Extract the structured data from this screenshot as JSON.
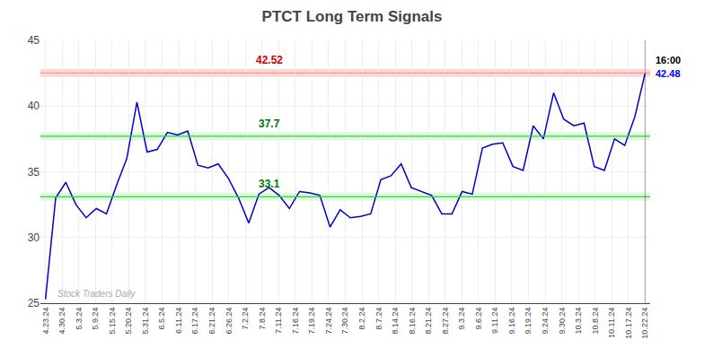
{
  "chart_data": {
    "type": "line",
    "title": "PTCT Long Term Signals",
    "color": "#0000cc",
    "values": [
      25.3,
      33.0,
      34.2,
      32.5,
      31.5,
      32.2,
      31.8,
      34.0,
      36.0,
      40.3,
      36.5,
      36.7,
      38.0,
      37.8,
      38.1,
      35.5,
      35.3,
      35.6,
      34.5,
      33.0,
      31.1,
      33.3,
      33.8,
      33.2,
      32.2,
      33.5,
      33.4,
      33.2,
      30.8,
      32.1,
      31.5,
      31.6,
      31.8,
      34.4,
      34.7,
      35.6,
      33.8,
      33.5,
      33.2,
      31.8,
      31.8,
      33.5,
      33.3,
      36.8,
      37.1,
      37.2,
      35.4,
      35.1,
      38.5,
      37.5,
      41.0,
      39.0,
      38.5,
      38.7,
      35.4,
      35.1,
      37.5,
      37.0,
      39.2,
      42.48
    ],
    "xlim": [
      -0.5,
      59.5
    ],
    "xticks": [
      {
        "value": 0,
        "label": "4.23.24"
      },
      {
        "value": 1.6389,
        "label": "4.30.24"
      },
      {
        "value": 3.2778,
        "label": "5.3.24"
      },
      {
        "value": 4.9167,
        "label": "5.9.24"
      },
      {
        "value": 6.5556,
        "label": "5.15.24"
      },
      {
        "value": 8.1944,
        "label": "5.20.24"
      },
      {
        "value": 9.8333,
        "label": "5.31.24"
      },
      {
        "value": 11.4722,
        "label": "6.5.24"
      },
      {
        "value": 13.1111,
        "label": "6.11.24"
      },
      {
        "value": 14.75,
        "label": "6.17.24"
      },
      {
        "value": 16.3889,
        "label": "6.21.24"
      },
      {
        "value": 18.0278,
        "label": "6.26.24"
      },
      {
        "value": 19.6667,
        "label": "7.2.24"
      },
      {
        "value": 21.3056,
        "label": "7.8.24"
      },
      {
        "value": 22.9444,
        "label": "7.11.24"
      },
      {
        "value": 24.5833,
        "label": "7.16.24"
      },
      {
        "value": 26.2222,
        "label": "7.19.24"
      },
      {
        "value": 27.8611,
        "label": "7.24.24"
      },
      {
        "value": 29.5,
        "label": "7.30.24"
      },
      {
        "value": 31.1389,
        "label": "8.2.24"
      },
      {
        "value": 32.7778,
        "label": "8.7.24"
      },
      {
        "value": 34.4167,
        "label": "8.14.24"
      },
      {
        "value": 36.0556,
        "label": "8.16.24"
      },
      {
        "value": 37.6944,
        "label": "8.21.24"
      },
      {
        "value": 39.3333,
        "label": "8.27.24"
      },
      {
        "value": 40.9722,
        "label": "9.3.24"
      },
      {
        "value": 42.6111,
        "label": "9.6.24"
      },
      {
        "value": 44.25,
        "label": "9.11.24"
      },
      {
        "value": 45.8889,
        "label": "9.16.24"
      },
      {
        "value": 47.5278,
        "label": "9.19.24"
      },
      {
        "value": 49.1667,
        "label": "9.24.24"
      },
      {
        "value": 50.8056,
        "label": "9.30.24"
      },
      {
        "value": 52.4444,
        "label": "10.3.24"
      },
      {
        "value": 54.0833,
        "label": "10.8.24"
      },
      {
        "value": 55.7222,
        "label": "10.11.24"
      },
      {
        "value": 57.3611,
        "label": "10.17.24"
      },
      {
        "value": 59,
        "label": "10.22.24"
      }
    ],
    "ylim": [
      25,
      45
    ],
    "yticks": [
      25,
      30,
      35,
      40,
      45
    ],
    "grid": true,
    "reference_lines": [
      {
        "y": 42.52,
        "label": "42.52",
        "color": "#ff9999",
        "band_color": "#ffcccc",
        "label_color": "#cc0000"
      },
      {
        "y": 37.7,
        "label": "37.7",
        "color": "#55bb55",
        "band_color": "#ccffcc",
        "label_color": "#007700"
      },
      {
        "y": 33.1,
        "label": "33.1",
        "color": "#55bb55",
        "band_color": "#ccffcc",
        "label_color": "#007700"
      }
    ],
    "watermark": {
      "text": "Stock Traders Daily",
      "color": "#aaaaaa"
    },
    "end_labels": [
      {
        "text": "16:00",
        "color": "#000000"
      },
      {
        "text": "42.48",
        "color": "#0000ff"
      }
    ]
  }
}
